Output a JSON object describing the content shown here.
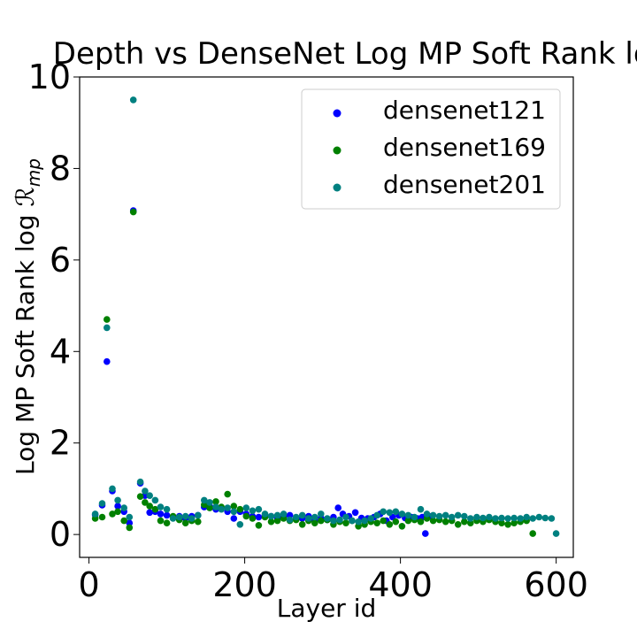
{
  "chart_data": {
    "type": "scatter",
    "title": "Depth vs DenseNet Log MP Soft Rank log ℛ",
    "xlabel": "Layer id",
    "ylabel_prefix": "Log MP Soft Rank log ",
    "ylabel_symbol": "ℛ",
    "ylabel_subscript": "mp",
    "xlim": [
      -12,
      622
    ],
    "ylim": [
      -0.5,
      10.0
    ],
    "xticks": [
      0,
      200,
      400,
      600
    ],
    "yticks": [
      0,
      2,
      4,
      6,
      8,
      10
    ],
    "grid": false,
    "legend_position": "top-right",
    "series": [
      {
        "name": "densenet121",
        "color": "#0000ff",
        "points": [
          [
            8,
            0.43
          ],
          [
            17,
            0.64
          ],
          [
            23,
            3.78
          ],
          [
            30,
            0.95
          ],
          [
            37,
            0.62
          ],
          [
            45,
            0.5
          ],
          [
            52,
            0.25
          ],
          [
            57,
            7.08
          ],
          [
            66,
            1.12
          ],
          [
            72,
            0.85
          ],
          [
            78,
            0.48
          ],
          [
            85,
            0.5
          ],
          [
            92,
            0.45
          ],
          [
            100,
            0.42
          ],
          [
            108,
            0.38
          ],
          [
            116,
            0.4
          ],
          [
            124,
            0.35
          ],
          [
            132,
            0.4
          ],
          [
            140,
            0.42
          ],
          [
            148,
            0.6
          ],
          [
            155,
            0.62
          ],
          [
            163,
            0.55
          ],
          [
            170,
            0.58
          ],
          [
            178,
            0.5
          ],
          [
            186,
            0.35
          ],
          [
            194,
            0.5
          ],
          [
            202,
            0.45
          ],
          [
            210,
            0.4
          ],
          [
            218,
            0.38
          ],
          [
            226,
            0.42
          ],
          [
            234,
            0.4
          ],
          [
            242,
            0.35
          ],
          [
            250,
            0.38
          ],
          [
            258,
            0.42
          ],
          [
            266,
            0.36
          ],
          [
            274,
            0.35
          ],
          [
            282,
            0.4
          ],
          [
            290,
            0.3
          ],
          [
            298,
            0.36
          ],
          [
            306,
            0.32
          ],
          [
            314,
            0.38
          ],
          [
            320,
            0.58
          ],
          [
            326,
            0.45
          ],
          [
            334,
            0.4
          ],
          [
            342,
            0.48
          ],
          [
            350,
            0.36
          ],
          [
            358,
            0.35
          ],
          [
            366,
            0.38
          ],
          [
            374,
            0.45
          ],
          [
            382,
            0.3
          ],
          [
            390,
            0.38
          ],
          [
            398,
            0.42
          ],
          [
            406,
            0.36
          ],
          [
            414,
            0.38
          ],
          [
            422,
            0.35
          ],
          [
            428,
            0.38
          ],
          [
            432,
            0.02
          ],
          [
            440,
            0.4
          ]
        ]
      },
      {
        "name": "densenet169",
        "color": "#008000",
        "points": [
          [
            8,
            0.35
          ],
          [
            17,
            0.38
          ],
          [
            23,
            4.7
          ],
          [
            30,
            0.45
          ],
          [
            37,
            0.5
          ],
          [
            45,
            0.3
          ],
          [
            52,
            0.15
          ],
          [
            57,
            7.05
          ],
          [
            66,
            0.83
          ],
          [
            72,
            0.7
          ],
          [
            78,
            0.62
          ],
          [
            85,
            0.55
          ],
          [
            92,
            0.3
          ],
          [
            100,
            0.25
          ],
          [
            108,
            0.4
          ],
          [
            116,
            0.32
          ],
          [
            124,
            0.25
          ],
          [
            132,
            0.3
          ],
          [
            140,
            0.28
          ],
          [
            148,
            0.65
          ],
          [
            155,
            0.58
          ],
          [
            163,
            0.72
          ],
          [
            170,
            0.6
          ],
          [
            178,
            0.88
          ],
          [
            186,
            0.62
          ],
          [
            194,
            0.55
          ],
          [
            202,
            0.4
          ],
          [
            210,
            0.35
          ],
          [
            218,
            0.2
          ],
          [
            226,
            0.38
          ],
          [
            234,
            0.28
          ],
          [
            242,
            0.3
          ],
          [
            250,
            0.35
          ],
          [
            258,
            0.3
          ],
          [
            266,
            0.32
          ],
          [
            274,
            0.22
          ],
          [
            282,
            0.3
          ],
          [
            290,
            0.25
          ],
          [
            298,
            0.3
          ],
          [
            306,
            0.32
          ],
          [
            314,
            0.22
          ],
          [
            322,
            0.28
          ],
          [
            330,
            0.25
          ],
          [
            338,
            0.3
          ],
          [
            346,
            0.18
          ],
          [
            354,
            0.22
          ],
          [
            362,
            0.28
          ],
          [
            370,
            0.25
          ],
          [
            378,
            0.3
          ],
          [
            386,
            0.22
          ],
          [
            394,
            0.28
          ],
          [
            402,
            0.18
          ],
          [
            410,
            0.3
          ],
          [
            418,
            0.32
          ],
          [
            426,
            0.28
          ],
          [
            434,
            0.35
          ],
          [
            442,
            0.3
          ],
          [
            450,
            0.32
          ],
          [
            458,
            0.28
          ],
          [
            466,
            0.3
          ],
          [
            474,
            0.22
          ],
          [
            482,
            0.28
          ],
          [
            490,
            0.25
          ],
          [
            498,
            0.3
          ],
          [
            506,
            0.28
          ],
          [
            514,
            0.32
          ],
          [
            522,
            0.28
          ],
          [
            530,
            0.25
          ],
          [
            538,
            0.22
          ],
          [
            546,
            0.25
          ],
          [
            554,
            0.28
          ],
          [
            562,
            0.3
          ],
          [
            570,
            0.02
          ]
        ]
      },
      {
        "name": "densenet201",
        "color": "#008080",
        "points": [
          [
            8,
            0.45
          ],
          [
            17,
            0.68
          ],
          [
            23,
            4.52
          ],
          [
            30,
            1.0
          ],
          [
            37,
            0.75
          ],
          [
            45,
            0.58
          ],
          [
            52,
            0.38
          ],
          [
            57,
            9.5
          ],
          [
            66,
            1.15
          ],
          [
            72,
            0.95
          ],
          [
            78,
            0.85
          ],
          [
            85,
            0.75
          ],
          [
            92,
            0.6
          ],
          [
            100,
            0.55
          ],
          [
            108,
            0.35
          ],
          [
            116,
            0.38
          ],
          [
            124,
            0.4
          ],
          [
            132,
            0.35
          ],
          [
            140,
            0.42
          ],
          [
            148,
            0.75
          ],
          [
            155,
            0.7
          ],
          [
            163,
            0.6
          ],
          [
            170,
            0.55
          ],
          [
            178,
            0.58
          ],
          [
            186,
            0.5
          ],
          [
            194,
            0.22
          ],
          [
            202,
            0.58
          ],
          [
            210,
            0.52
          ],
          [
            218,
            0.55
          ],
          [
            226,
            0.45
          ],
          [
            234,
            0.4
          ],
          [
            242,
            0.42
          ],
          [
            250,
            0.45
          ],
          [
            258,
            0.32
          ],
          [
            266,
            0.38
          ],
          [
            274,
            0.42
          ],
          [
            282,
            0.35
          ],
          [
            290,
            0.38
          ],
          [
            298,
            0.45
          ],
          [
            306,
            0.35
          ],
          [
            314,
            0.3
          ],
          [
            322,
            0.32
          ],
          [
            330,
            0.38
          ],
          [
            338,
            0.3
          ],
          [
            346,
            0.28
          ],
          [
            354,
            0.3
          ],
          [
            362,
            0.35
          ],
          [
            370,
            0.42
          ],
          [
            378,
            0.5
          ],
          [
            386,
            0.48
          ],
          [
            394,
            0.5
          ],
          [
            402,
            0.45
          ],
          [
            410,
            0.42
          ],
          [
            418,
            0.38
          ],
          [
            426,
            0.55
          ],
          [
            434,
            0.45
          ],
          [
            442,
            0.42
          ],
          [
            450,
            0.4
          ],
          [
            458,
            0.42
          ],
          [
            466,
            0.38
          ],
          [
            474,
            0.42
          ],
          [
            482,
            0.4
          ],
          [
            490,
            0.35
          ],
          [
            498,
            0.38
          ],
          [
            506,
            0.36
          ],
          [
            514,
            0.38
          ],
          [
            522,
            0.35
          ],
          [
            530,
            0.36
          ],
          [
            538,
            0.35
          ],
          [
            546,
            0.36
          ],
          [
            554,
            0.35
          ],
          [
            562,
            0.38
          ],
          [
            570,
            0.35
          ],
          [
            578,
            0.38
          ],
          [
            586,
            0.36
          ],
          [
            594,
            0.35
          ],
          [
            600,
            0.02
          ]
        ]
      }
    ]
  }
}
